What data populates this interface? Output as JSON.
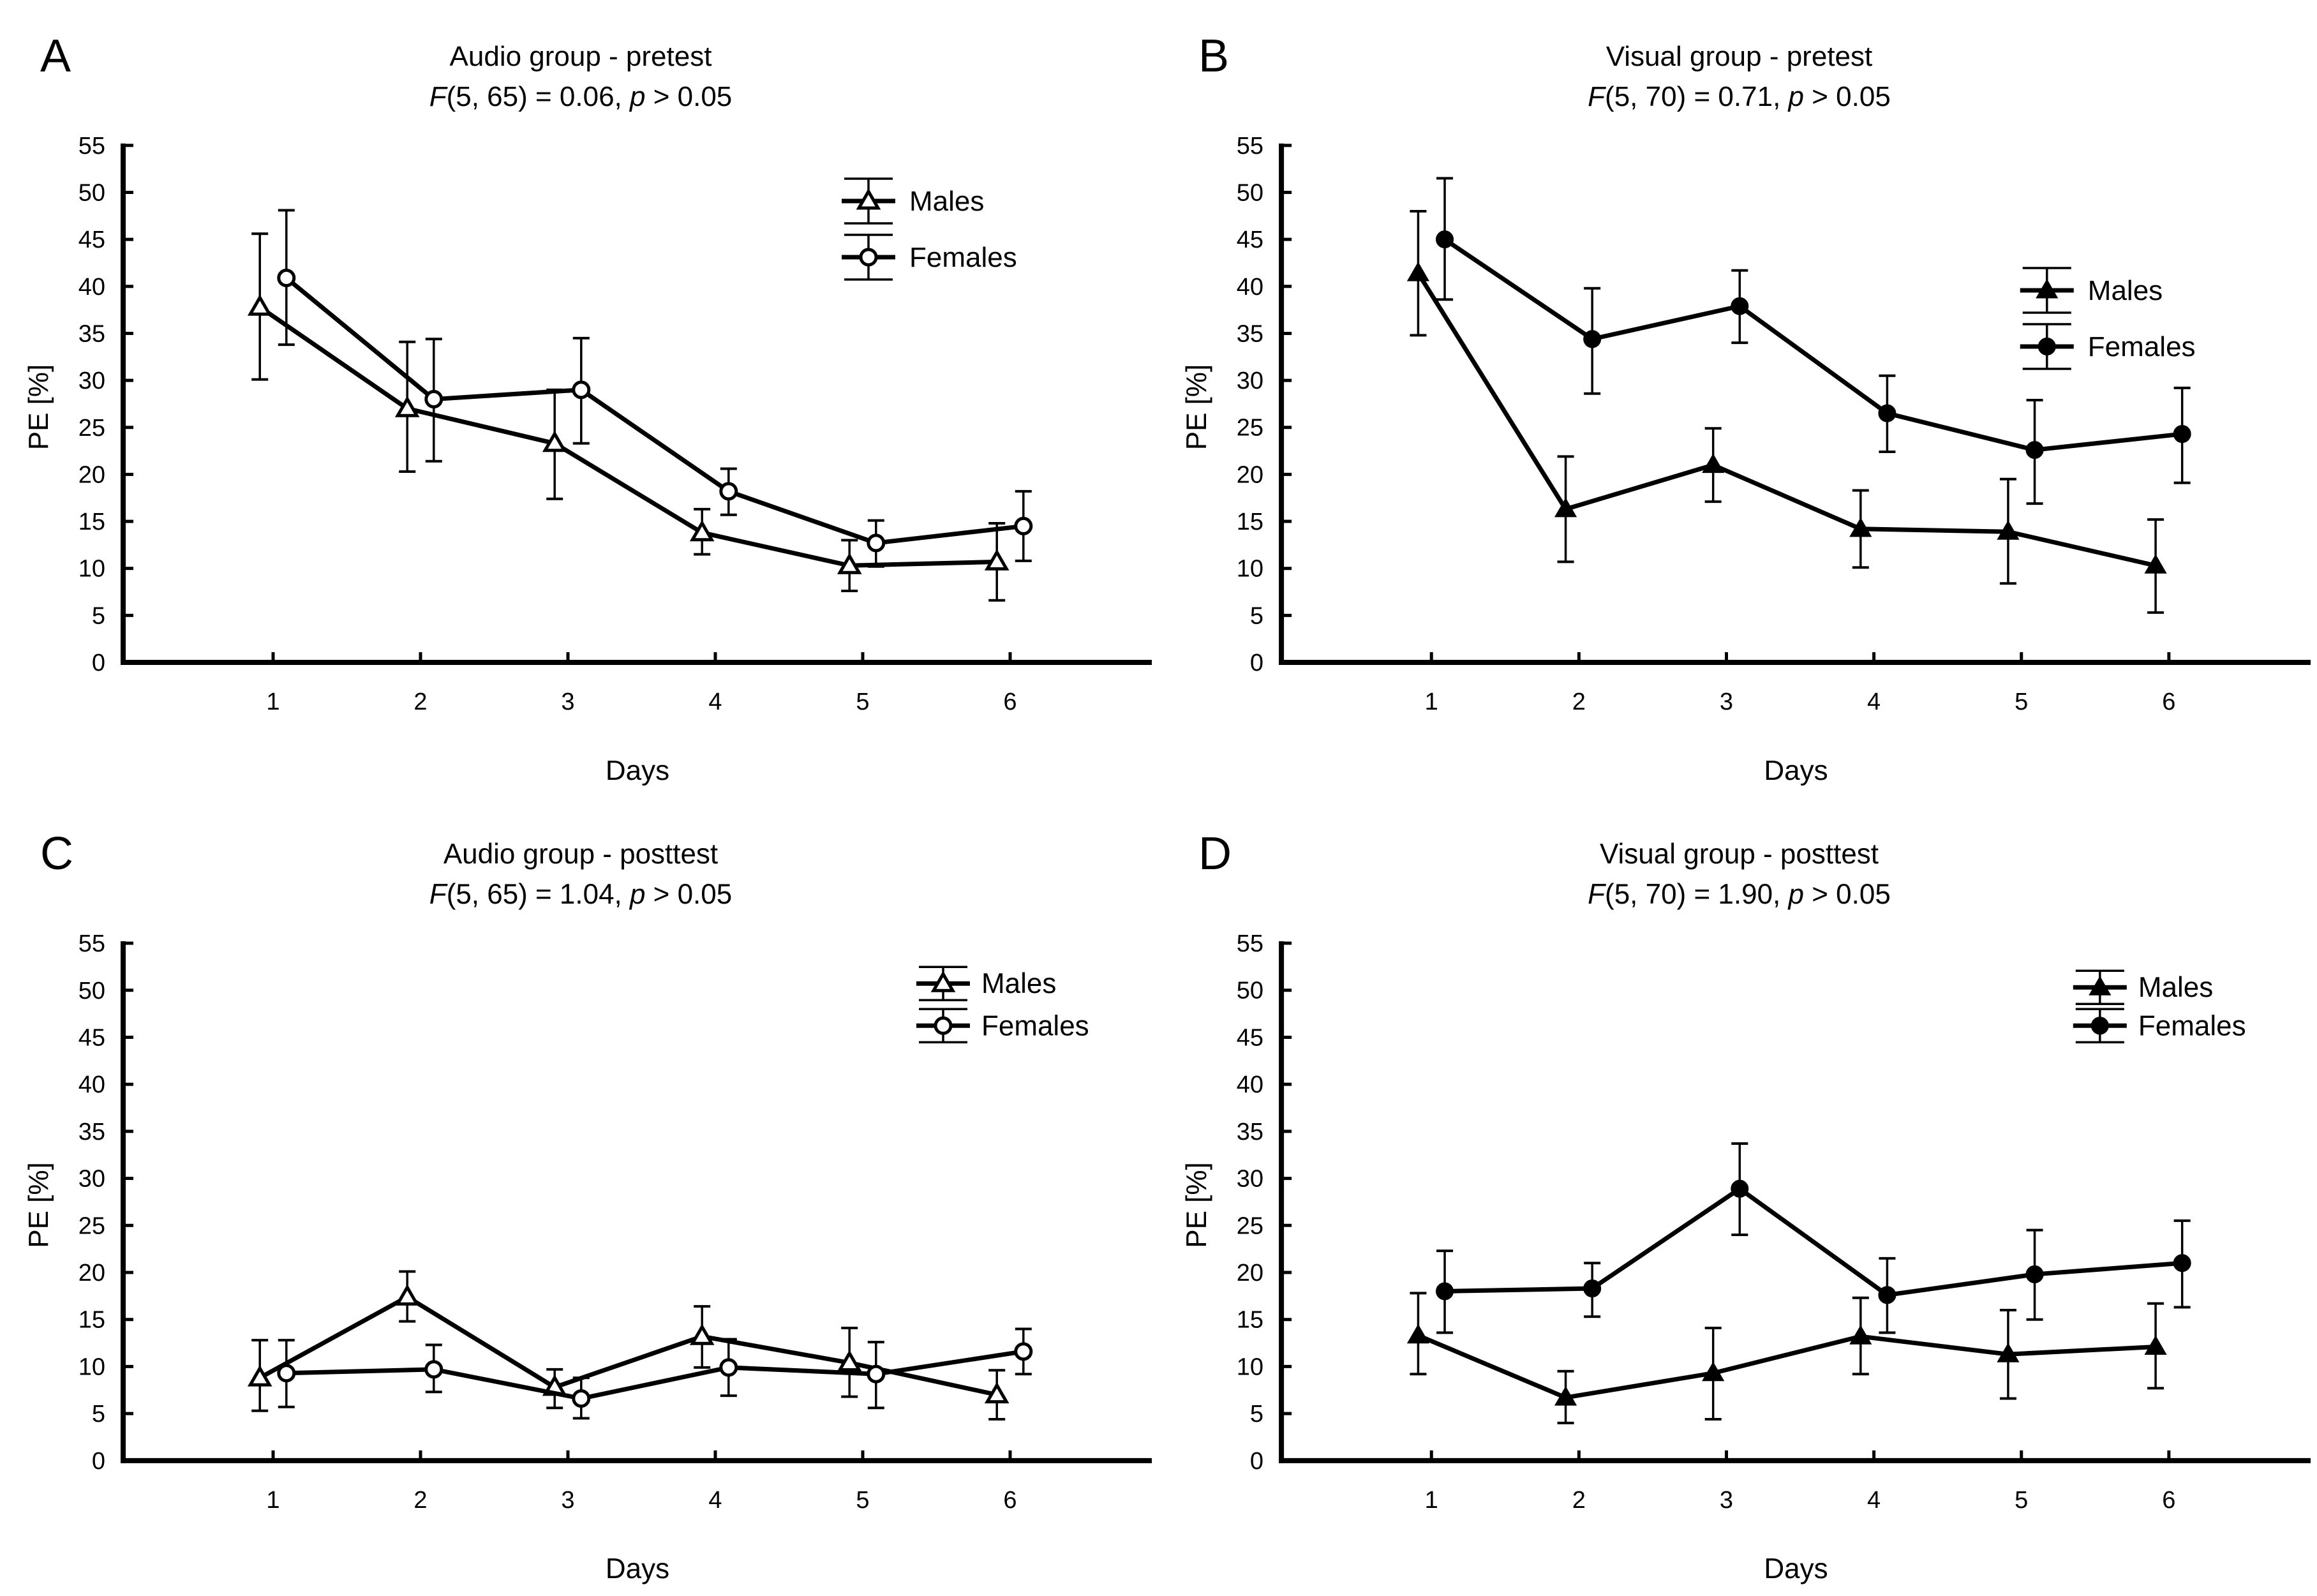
{
  "figure": {
    "background": "#ffffff",
    "ink_color": "#000000"
  },
  "chart_data": [
    {
      "type": "line",
      "panel_label": "A",
      "title": "Audio group - pretest",
      "stat_parts": [
        {
          "text": "F",
          "italic": true
        },
        {
          "text": "(5, 65) = 0.06, ",
          "italic": false
        },
        {
          "text": "p",
          "italic": true
        },
        {
          "text": " > 0.05",
          "italic": false
        }
      ],
      "xlabel": "Days",
      "ylabel": "PE [%]",
      "x": [
        1,
        2,
        3,
        4,
        5,
        6
      ],
      "ylim": [
        0,
        55
      ],
      "ytick_step": 5,
      "ytick_labels": [
        "0",
        "5",
        "10",
        "15",
        "20",
        "25",
        "30",
        "35",
        "40",
        "45",
        "50",
        "55"
      ],
      "grid": false,
      "legend_position": "inside-top-right",
      "legend_layout": {
        "cx": 1361,
        "rows_y": [
          315,
          403
        ],
        "text_x": 1425,
        "cap": 35
      },
      "series": [
        {
          "name": "Males",
          "marker": "triangle",
          "marker_fill": "open",
          "x_offset": -0.09,
          "values": [
            37.8,
            27.0,
            23.3,
            13.8,
            10.3,
            10.7
          ],
          "err_low": [
            30.1,
            20.3,
            17.4,
            11.5,
            7.6,
            6.6
          ],
          "err_high": [
            45.6,
            34.1,
            29.0,
            16.3,
            13.0,
            14.8
          ]
        },
        {
          "name": "Females",
          "marker": "circle",
          "marker_fill": "open",
          "x_offset": 0.09,
          "values": [
            40.9,
            28.0,
            29.0,
            18.2,
            12.7,
            14.5
          ],
          "err_low": [
            33.8,
            21.4,
            23.3,
            15.7,
            10.2,
            10.8
          ],
          "err_high": [
            48.1,
            34.4,
            34.5,
            20.6,
            15.1,
            18.2
          ]
        }
      ]
    },
    {
      "type": "line",
      "panel_label": "B",
      "title": "Visual group - pretest",
      "stat_parts": [
        {
          "text": "F",
          "italic": true
        },
        {
          "text": "(5, 70) = 0.71, ",
          "italic": false
        },
        {
          "text": "p",
          "italic": true
        },
        {
          "text": " > 0.05",
          "italic": false
        }
      ],
      "xlabel": "Days",
      "ylabel": "PE [%]",
      "x": [
        1,
        2,
        3,
        4,
        5,
        6
      ],
      "ylim": [
        0,
        55
      ],
      "ytick_step": 5,
      "ytick_labels": [
        "0",
        "5",
        "10",
        "15",
        "20",
        "25",
        "30",
        "35",
        "40",
        "45",
        "50",
        "55"
      ],
      "grid": false,
      "legend_position": "inside-top-right",
      "legend_layout": {
        "cx": 1392,
        "rows_y": [
          455,
          543
        ],
        "text_x": 1456,
        "cap": 35
      },
      "series": [
        {
          "name": "Males",
          "marker": "triangle",
          "marker_fill": "filled",
          "x_offset": -0.09,
          "values": [
            41.4,
            16.3,
            21.0,
            14.2,
            13.9,
            10.3
          ],
          "err_low": [
            34.8,
            10.7,
            17.1,
            10.1,
            8.4,
            5.3
          ],
          "err_high": [
            48.0,
            21.9,
            24.9,
            18.3,
            19.5,
            15.2
          ]
        },
        {
          "name": "Females",
          "marker": "circle",
          "marker_fill": "filled",
          "x_offset": 0.09,
          "values": [
            45.0,
            34.4,
            37.9,
            26.5,
            22.6,
            24.3
          ],
          "err_low": [
            38.6,
            28.6,
            34.0,
            22.4,
            16.9,
            19.1
          ],
          "err_high": [
            51.5,
            39.8,
            41.7,
            30.5,
            27.9,
            29.2
          ]
        }
      ]
    },
    {
      "type": "line",
      "panel_label": "C",
      "title": "Audio group - posttest",
      "stat_parts": [
        {
          "text": "F",
          "italic": true
        },
        {
          "text": "(5, 65) = 1.04, ",
          "italic": false
        },
        {
          "text": "p",
          "italic": true
        },
        {
          "text": " > 0.05",
          "italic": false
        }
      ],
      "xlabel": "Days",
      "ylabel": "PE [%]",
      "x": [
        1,
        2,
        3,
        4,
        5,
        6
      ],
      "ylim": [
        0,
        55
      ],
      "ytick_step": 5,
      "ytick_labels": [
        "0",
        "5",
        "10",
        "15",
        "20",
        "25",
        "30",
        "35",
        "40",
        "45",
        "50",
        "55"
      ],
      "grid": false,
      "legend_position": "inside-top-right",
      "legend_layout": {
        "cx": 1478,
        "rows_y": [
          291,
          357
        ],
        "text_x": 1538,
        "cap": 26
      },
      "series": [
        {
          "name": "Males",
          "marker": "triangle",
          "marker_fill": "open",
          "x_offset": -0.09,
          "values": [
            8.8,
            17.4,
            7.8,
            13.2,
            10.4,
            7.0
          ],
          "err_low": [
            5.3,
            14.8,
            5.6,
            9.9,
            6.8,
            4.4
          ],
          "err_high": [
            12.8,
            20.1,
            9.7,
            16.4,
            14.1,
            9.6
          ]
        },
        {
          "name": "Females",
          "marker": "circle",
          "marker_fill": "open",
          "x_offset": 0.09,
          "values": [
            9.3,
            9.7,
            6.6,
            9.9,
            9.2,
            11.6
          ],
          "err_low": [
            5.7,
            7.3,
            4.5,
            6.9,
            5.6,
            9.2
          ],
          "err_high": [
            12.8,
            12.3,
            8.8,
            12.9,
            12.6,
            14.0
          ]
        }
      ]
    },
    {
      "type": "line",
      "panel_label": "D",
      "title": "Visual group - posttest",
      "stat_parts": [
        {
          "text": "F",
          "italic": true
        },
        {
          "text": "(5, 70) = 1.90, ",
          "italic": false
        },
        {
          "text": "p",
          "italic": true
        },
        {
          "text": " > 0.05",
          "italic": false
        }
      ],
      "xlabel": "Days",
      "ylabel": "PE [%]",
      "x": [
        1,
        2,
        3,
        4,
        5,
        6
      ],
      "ylim": [
        0,
        55
      ],
      "ytick_step": 5,
      "ytick_labels": [
        "0",
        "5",
        "10",
        "15",
        "20",
        "25",
        "30",
        "35",
        "40",
        "45",
        "50",
        "55"
      ],
      "grid": false,
      "legend_position": "inside-top-right",
      "legend_layout": {
        "cx": 1475,
        "rows_y": [
          297,
          357
        ],
        "text_x": 1535,
        "cap": 26
      },
      "series": [
        {
          "name": "Males",
          "marker": "triangle",
          "marker_fill": "filled",
          "x_offset": -0.09,
          "values": [
            13.3,
            6.7,
            9.3,
            13.2,
            11.3,
            12.1
          ],
          "err_low": [
            9.2,
            4.0,
            4.4,
            9.2,
            6.6,
            7.7
          ],
          "err_high": [
            17.8,
            9.5,
            14.1,
            17.3,
            16.0,
            16.7
          ]
        },
        {
          "name": "Females",
          "marker": "circle",
          "marker_fill": "filled",
          "x_offset": 0.09,
          "values": [
            18.0,
            18.3,
            28.9,
            17.6,
            19.8,
            21.0
          ],
          "err_low": [
            13.6,
            15.3,
            24.0,
            13.6,
            15.0,
            16.3
          ],
          "err_high": [
            22.3,
            21.0,
            33.7,
            21.5,
            24.5,
            25.5
          ]
        }
      ]
    }
  ]
}
